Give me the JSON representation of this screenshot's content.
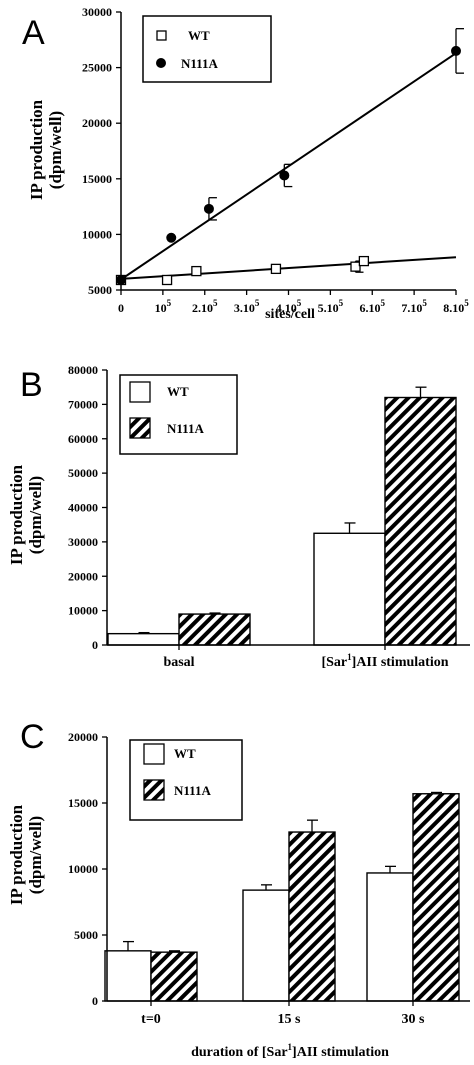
{
  "chart_data": [
    {
      "panel": "A",
      "type": "scatter",
      "ylabel": [
        "IP production",
        "(dpm/well)"
      ],
      "xlabel": "sites/cell",
      "xlim": [
        0,
        800000
      ],
      "ylim": [
        5000,
        30000
      ],
      "yticks": [
        5000,
        10000,
        15000,
        20000,
        25000,
        30000
      ],
      "xticks": [
        {
          "value": 0,
          "base": "0",
          "exp": ""
        },
        {
          "value": 100000,
          "base": "10",
          "exp": "5"
        },
        {
          "value": 200000,
          "base": "2.10",
          "exp": "5"
        },
        {
          "value": 300000,
          "base": "3.10",
          "exp": "5"
        },
        {
          "value": 400000,
          "base": "4.10",
          "exp": "5"
        },
        {
          "value": 500000,
          "base": "5.10",
          "exp": "5"
        },
        {
          "value": 600000,
          "base": "6.10",
          "exp": "5"
        },
        {
          "value": 700000,
          "base": "7.10",
          "exp": "5"
        },
        {
          "value": 800000,
          "base": "8.10",
          "exp": "5"
        }
      ],
      "legend_position": "top-left",
      "series": [
        {
          "name": "WT",
          "marker": "open-square",
          "points": [
            {
              "x": 0,
              "y": 5900,
              "err": 0
            },
            {
              "x": 110000,
              "y": 5900,
              "err": 0
            },
            {
              "x": 180000,
              "y": 6700,
              "err": 0
            },
            {
              "x": 370000,
              "y": 6900,
              "err": 0
            },
            {
              "x": 560000,
              "y": 7100,
              "err": 500
            },
            {
              "x": 580000,
              "y": 7600,
              "err": 0
            }
          ],
          "fit": {
            "x": [
              0,
              800000
            ],
            "y": [
              6000,
              7950
            ]
          }
        },
        {
          "name": "N111A",
          "marker": "filled-circle",
          "points": [
            {
              "x": 0,
              "y": 5900,
              "err": 0
            },
            {
              "x": 120000,
              "y": 9700,
              "err": 0
            },
            {
              "x": 210000,
              "y": 12300,
              "err": 1000
            },
            {
              "x": 390000,
              "y": 15300,
              "err": 1000
            },
            {
              "x": 800000,
              "y": 26500,
              "err": 2000
            }
          ],
          "fit": {
            "x": [
              0,
              800000
            ],
            "y": [
              5950,
              26300
            ]
          }
        }
      ]
    },
    {
      "panel": "B",
      "type": "bar",
      "ylabel": [
        "IP production",
        "(dpm/well)"
      ],
      "ylim": [
        0,
        80000
      ],
      "yticks": [
        0,
        10000,
        20000,
        30000,
        40000,
        50000,
        60000,
        70000,
        80000
      ],
      "categories": [
        {
          "pre": "basal",
          "sup": "",
          "post": ""
        },
        {
          "pre": "[Sar",
          "sup": "1",
          "post": "]AII stimulation"
        }
      ],
      "legend_position": "top-left",
      "series": [
        {
          "name": "WT",
          "fill": "open",
          "values": [
            3300,
            32500
          ],
          "errors": [
            300,
            3000
          ]
        },
        {
          "name": "N111A",
          "fill": "hatched",
          "values": [
            9000,
            72000
          ],
          "errors": [
            300,
            3000
          ]
        }
      ]
    },
    {
      "panel": "C",
      "type": "bar",
      "ylabel": [
        "IP production",
        "(dpm/well)"
      ],
      "xlabel": {
        "pre": "duration of [Sar",
        "sup": "1",
        "post": "]AII stimulation"
      },
      "ylim": [
        0,
        20000
      ],
      "yticks": [
        0,
        5000,
        10000,
        15000,
        20000
      ],
      "categories": [
        {
          "pre": "t=0",
          "sup": "",
          "post": ""
        },
        {
          "pre": "15 s",
          "sup": "",
          "post": ""
        },
        {
          "pre": "30 s",
          "sup": "",
          "post": ""
        }
      ],
      "legend_position": "top-left",
      "series": [
        {
          "name": "WT",
          "fill": "open",
          "values": [
            3800,
            8400,
            9700
          ],
          "errors": [
            700,
            400,
            500
          ]
        },
        {
          "name": "N111A",
          "fill": "hatched",
          "values": [
            3700,
            12800,
            15700
          ],
          "errors": [
            100,
            900,
            100
          ]
        }
      ]
    }
  ]
}
